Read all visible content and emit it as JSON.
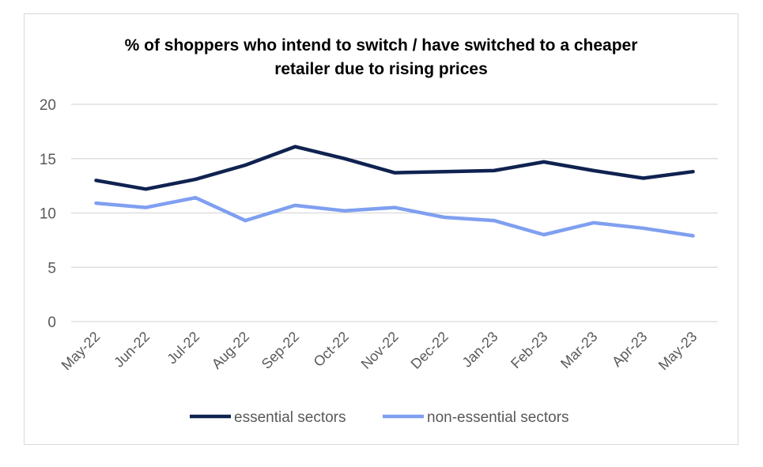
{
  "chart_data": {
    "type": "line",
    "title": "% of shoppers who intend to switch / have switched to a cheaper retailer due to rising prices",
    "title_lines": [
      "% of shoppers who intend to switch / have switched to a cheaper",
      "retailer due to rising prices"
    ],
    "categories": [
      "May-22",
      "Jun-22",
      "Jul-22",
      "Aug-22",
      "Sep-22",
      "Oct-22",
      "Nov-22",
      "Dec-22",
      "Jan-23",
      "Feb-23",
      "Mar-23",
      "Apr-23",
      "May-23"
    ],
    "series": [
      {
        "name": "essential sectors",
        "color": "#0f2250",
        "values": [
          13.0,
          12.2,
          13.1,
          14.4,
          16.1,
          15.0,
          13.7,
          13.8,
          13.9,
          14.7,
          13.9,
          13.2,
          13.8
        ]
      },
      {
        "name": "non-essential sectors",
        "color": "#7f9ff0",
        "values": [
          10.9,
          10.5,
          11.4,
          9.3,
          10.7,
          10.2,
          10.5,
          9.6,
          9.3,
          8.0,
          9.1,
          8.6,
          7.9
        ]
      }
    ],
    "ylim": [
      0,
      20
    ],
    "yticks": [
      0,
      5,
      10,
      15,
      20
    ],
    "xlabel": "",
    "ylabel": "",
    "grid": true,
    "legend_position": "bottom"
  }
}
